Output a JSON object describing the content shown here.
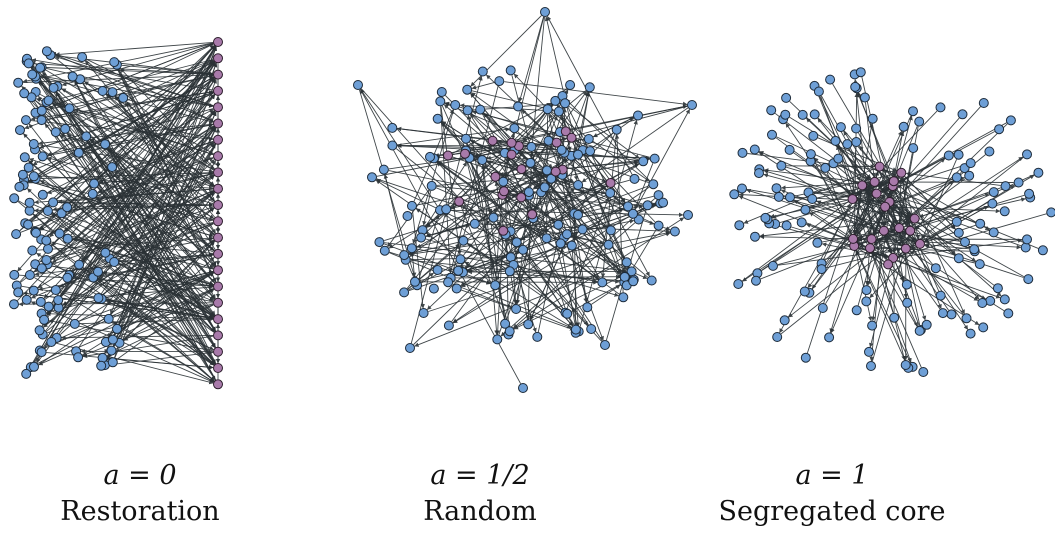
{
  "colors": {
    "periphery_node": "#6e9fd6",
    "core_node": "#a87aaa",
    "edge": "#2b3236"
  },
  "panels": [
    {
      "id": "restoration",
      "equation": "a = 0",
      "label": "Restoration"
    },
    {
      "id": "random",
      "equation": "a = 1/2",
      "label": "Random"
    },
    {
      "id": "segregated",
      "equation": "a = 1",
      "label": "Segregated core"
    }
  ]
}
